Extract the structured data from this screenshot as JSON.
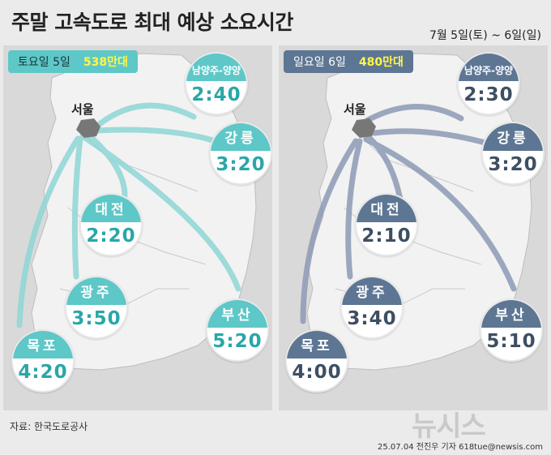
{
  "title": "주말 고속도로 최대 예상 소요시간",
  "date_range": "7월 5일(토) ~ 6일(일)",
  "origin": "서울",
  "saturday": {
    "label": "토요일 5일",
    "traffic": "538만대",
    "destinations": [
      {
        "name": "남양주-양양",
        "time": "2:40"
      },
      {
        "name": "강릉",
        "time": "3:20"
      },
      {
        "name": "대전",
        "time": "2:20"
      },
      {
        "name": "광주",
        "time": "3:50"
      },
      {
        "name": "부산",
        "time": "5:20"
      },
      {
        "name": "목포",
        "time": "4:20"
      }
    ]
  },
  "sunday": {
    "label": "일요일 6일",
    "traffic": "480만대",
    "destinations": [
      {
        "name": "남양주-양양",
        "time": "2:30"
      },
      {
        "name": "강릉",
        "time": "3:20"
      },
      {
        "name": "대전",
        "time": "2:10"
      },
      {
        "name": "광주",
        "time": "3:40"
      },
      {
        "name": "부산",
        "time": "5:10"
      },
      {
        "name": "목포",
        "time": "4:00"
      }
    ]
  },
  "colors": {
    "saturday": "#5ec7c7",
    "sunday": "#5d7693",
    "traffic_highlight": "#fff64a"
  },
  "source": "자료: 한국도로공사",
  "credit": "25.07.04 전진우 기자 618tue@newsis.com",
  "logo": "뉴시스"
}
